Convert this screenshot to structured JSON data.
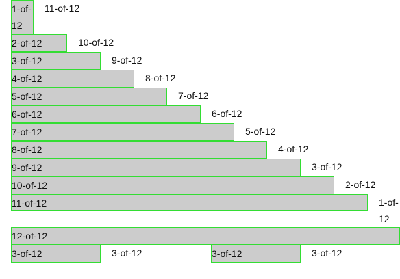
{
  "rows": [
    [
      "1-of-12",
      "11-of-12"
    ],
    [
      "2-of-12",
      "10-of-12"
    ],
    [
      "3-of-12",
      "9-of-12"
    ],
    [
      "4-of-12",
      "8-of-12"
    ],
    [
      "5-of-12",
      "7-of-12"
    ],
    [
      "6-of-12",
      "6-of-12"
    ],
    [
      "7-of-12",
      "5-of-12"
    ],
    [
      "8-of-12",
      "4-of-12"
    ],
    [
      "9-of-12",
      "3-of-12"
    ],
    [
      "10-of-12",
      "2-of-12"
    ],
    [
      "11-of-12",
      "1-of-12"
    ],
    [
      "12-of-12"
    ],
    [
      "3-of-12",
      "3-of-12",
      "3-of-12",
      "3-of-12"
    ]
  ],
  "colors": {
    "fill": "#cccccc",
    "border": "#33dd33",
    "background": "#ffffff"
  }
}
